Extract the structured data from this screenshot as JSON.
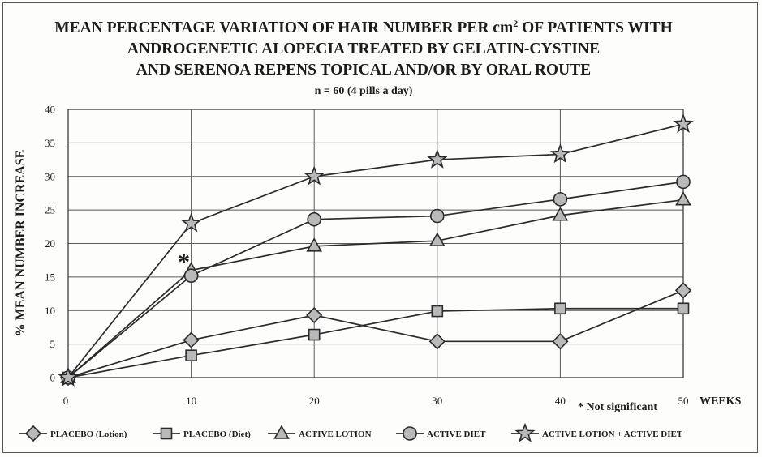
{
  "chart_data": {
    "type": "line",
    "title_lines": [
      "MEAN PERCENTAGE VARIATION OF HAIR NUMBER PER cm",
      "ANDROGENETIC ALOPECIA TREATED BY GELATIN-CYSTINE",
      "AND SERENOA REPENS TOPICAL  AND/OR BY ORAL ROUTE"
    ],
    "title_superscript": "2",
    "title_line1_tail": " OF PATIENTS WITH",
    "subtitle": "n = 60  (4 pills a day)",
    "xlabel": "WEEKS",
    "ylabel": "% MEAN NUMBER INCREASE",
    "x": [
      0,
      10,
      20,
      30,
      40,
      50
    ],
    "xlim": [
      0,
      50
    ],
    "ylim": [
      0,
      40
    ],
    "x_ticks": [
      "0",
      "10",
      "20",
      "30",
      "40",
      "50"
    ],
    "y_ticks": [
      "0",
      "5",
      "10",
      "15",
      "20",
      "25",
      "30",
      "35",
      "40"
    ],
    "grid": true,
    "legend_position": "bottom",
    "series": [
      {
        "name": "PLACEBO (Lotion)",
        "marker": "diamond",
        "values": [
          0,
          5.6,
          9.3,
          5.4,
          5.4,
          13
        ]
      },
      {
        "name": "PLACEBO (Diet)",
        "marker": "square",
        "values": [
          0,
          3.3,
          6.4,
          9.9,
          10.3,
          10.3
        ]
      },
      {
        "name": "ACTIVE LOTION",
        "marker": "triangle",
        "values": [
          0,
          16,
          19.6,
          20.4,
          24.2,
          26.5
        ]
      },
      {
        "name": "ACTIVE DIET",
        "marker": "circle",
        "values": [
          0,
          15.2,
          23.6,
          24.1,
          26.6,
          29.2
        ]
      },
      {
        "name": "ACTIVE LOTION + ACTIVE DIET",
        "marker": "star",
        "values": [
          0,
          23,
          30,
          32.5,
          33.3,
          37.8
        ]
      }
    ],
    "annotation": {
      "symbol": "*",
      "at_x": 10,
      "at_y": 17.5,
      "note": "* Not significant"
    }
  }
}
